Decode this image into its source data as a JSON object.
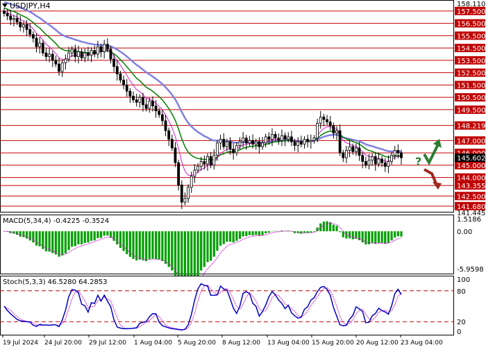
{
  "symbol": "USDJPY,H4",
  "price_panel": {
    "ylim": [
      141.445,
      158.11
    ],
    "top_label": "158.110",
    "bottom_label": "141.445",
    "levels": [
      {
        "value": 157.5,
        "label": "157.500"
      },
      {
        "value": 156.5,
        "label": "156.500"
      },
      {
        "value": 155.5,
        "label": "155.500"
      },
      {
        "value": 154.5,
        "label": "154.500"
      },
      {
        "value": 153.5,
        "label": "153.500"
      },
      {
        "value": 152.5,
        "label": "152.500"
      },
      {
        "value": 151.5,
        "label": "151.500"
      },
      {
        "value": 150.5,
        "label": "150.500"
      },
      {
        "value": 149.5,
        "label": "149.500"
      },
      {
        "value": 148.219,
        "label": "148.219"
      },
      {
        "value": 147.0,
        "label": "147.000"
      },
      {
        "value": 146.0,
        "label": "146.000"
      },
      {
        "value": 145.0,
        "label": "145.000"
      },
      {
        "value": 144.0,
        "label": "144.000"
      },
      {
        "value": 143.355,
        "label": "143.355"
      },
      {
        "value": 142.5,
        "label": "142.500"
      },
      {
        "value": 141.68,
        "label": "141.680"
      }
    ],
    "current": {
      "value": 145.602,
      "label": "145.602"
    },
    "forecast_mark": "?",
    "colors": {
      "level_line": "#c00000",
      "label_bg": "#c00000",
      "current_bg": "#000000",
      "candle": "#000000",
      "ma_fast": "#d020d0",
      "ma_mid": "#008000",
      "ma_slow": "#8080e0",
      "arrow_up": "#2e7d32",
      "arrow_down": "#a0281e"
    }
  },
  "macd_panel": {
    "title": "MACD(5,34,4) -0.4225 -0.3524",
    "ylim": [
      -5.9598,
      1.5186
    ],
    "tick_labels": [
      "1.5186",
      "0.00",
      "-5.9598"
    ],
    "colors": {
      "histogram": "#00a000",
      "signal": "#d020d0"
    }
  },
  "stoch_panel": {
    "title": "Stoch(5,3,3) 46.5280 64.2853",
    "ylim": [
      0,
      100
    ],
    "tick_labels": [
      "100",
      "80",
      "20",
      "0"
    ],
    "levels": [
      80,
      20
    ],
    "colors": {
      "main": "#0000c0",
      "signal": "#d020d0",
      "level": "#c00000"
    }
  },
  "x_axis": {
    "labels": [
      "19 Jul 2024",
      "24 Jul 20:00",
      "29 Jul 12:00",
      "1 Aug 04:00",
      "5 Aug 20:00",
      "8 Aug 12:00",
      "13 Aug 04:00",
      "15 Aug 20:00",
      "20 Aug 12:00",
      "23 Aug 04:00"
    ]
  },
  "chart_data": {
    "type": "candlestick",
    "symbol": "USDJPY,H4",
    "categories": [
      "19 Jul 2024",
      "24 Jul 20:00",
      "29 Jul 12:00",
      "1 Aug 04:00",
      "5 Aug 20:00",
      "8 Aug 12:00",
      "13 Aug 04:00",
      "15 Aug 20:00",
      "20 Aug 12:00",
      "23 Aug 04:00"
    ],
    "close": [
      157.3,
      157.1,
      156.8,
      156.9,
      156.6,
      156.2,
      156.4,
      156.0,
      155.6,
      155.3,
      154.6,
      154.9,
      154.1,
      153.8,
      154.0,
      153.5,
      153.2,
      152.6,
      153.3,
      153.6,
      154.1,
      154.4,
      153.8,
      154.2,
      153.7,
      154.1,
      153.9,
      154.3,
      154.0,
      154.6,
      154.2,
      154.8,
      154.4,
      153.6,
      153.0,
      152.4,
      151.9,
      151.5,
      151.0,
      150.6,
      150.3,
      150.1,
      150.5,
      149.9,
      149.6,
      150.2,
      149.8,
      149.4,
      149.1,
      148.6,
      147.8,
      147.1,
      146.4,
      145.2,
      143.4,
      142.0,
      142.3,
      143.2,
      144.1,
      144.6,
      144.9,
      145.3,
      145.1,
      145.7,
      145.0,
      145.8,
      146.8,
      147.1,
      146.5,
      146.9,
      146.3,
      146.0,
      146.6,
      146.9,
      147.2,
      146.8,
      147.0,
      146.7,
      146.9,
      146.5,
      146.8,
      147.3,
      147.1,
      147.5,
      147.2,
      147.0,
      147.4,
      147.1,
      147.3,
      146.9,
      146.6,
      146.9,
      146.7,
      147.1,
      146.9,
      147.0,
      147.2,
      148.4,
      148.9,
      148.7,
      148.5,
      148.2,
      147.6,
      147.8,
      146.0,
      145.6,
      146.2,
      146.5,
      146.1,
      146.4,
      145.8,
      145.3,
      145.0,
      145.4,
      145.7,
      145.1,
      145.5,
      145.2,
      144.9,
      145.3,
      145.8,
      146.2,
      146.0,
      145.6
    ],
    "last_value": 145.602,
    "indicators": {
      "MACD": {
        "params": "5,34,4",
        "main": -0.4225,
        "signal": -0.3524
      },
      "Stoch": {
        "params": "5,3,3",
        "main": 46.528,
        "signal": 64.2853,
        "levels": [
          80,
          20
        ]
      }
    }
  }
}
